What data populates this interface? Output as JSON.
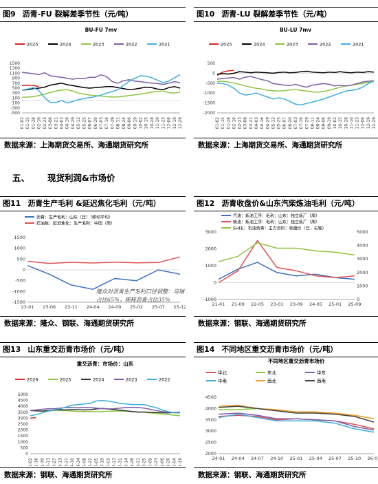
{
  "panels": [
    {
      "id": "fig9",
      "fig_label": "图9",
      "title": "沥青-FU 裂解差季节性（元/吨）",
      "source": "数据来源：上海期货交易所、海通期货研究所",
      "chart_data": {
        "type": "line",
        "title": "BU-FU 7mv",
        "x": [
          "01-02",
          "01-15",
          "01-28",
          "02-10",
          "02-23",
          "03-08",
          "03-21",
          "04-03",
          "04-16",
          "04-29",
          "05-12",
          "05-25",
          "06-07",
          "06-20",
          "07-03",
          "07-16",
          "07-29",
          "08-11",
          "08-24",
          "09-06",
          "09-19",
          "10-02",
          "10-15",
          "10-28",
          "11-10",
          "11-23",
          "12-06",
          "12-19",
          "12-29"
        ],
        "ylim": [
          -500,
          1500
        ],
        "yticks": [
          -500,
          -300,
          -100,
          100,
          300,
          500,
          700,
          900,
          1100,
          1300,
          1500
        ],
        "series": [
          {
            "name": "2025",
            "color": "#e02020",
            "values": [
              600,
              620,
              610,
              560,
              null,
              null,
              null,
              null,
              null,
              null,
              null,
              null,
              null,
              null,
              null,
              null,
              null,
              null,
              null,
              null,
              null,
              null,
              null,
              null,
              null,
              null,
              null,
              null,
              null
            ]
          },
          {
            "name": "2024",
            "color": "#000000",
            "values": [
              420,
              440,
              480,
              500,
              540,
              620,
              660,
              700,
              640,
              600,
              560,
              520,
              500,
              520,
              540,
              560,
              560,
              520,
              480,
              440,
              460,
              500,
              540,
              520,
              460,
              440,
              520,
              560,
              500
            ]
          },
          {
            "name": "2023",
            "color": "#8cc63f",
            "values": [
              130,
              140,
              160,
              200,
              260,
              320,
              380,
              420,
              440,
              380,
              300,
              260,
              220,
              200,
              180,
              160,
              140,
              150,
              170,
              200,
              230,
              260,
              300,
              340,
              360,
              380,
              320,
              300,
              330
            ]
          },
          {
            "name": "2022",
            "color": "#7b5ea7",
            "values": [
              1140,
              1110,
              1080,
              1050,
              1120,
              1000,
              960,
              940,
              900,
              860,
              900,
              880,
              940,
              940,
              1040,
              960,
              760,
              700,
              800,
              840,
              780,
              760,
              730,
              700,
              690,
              650,
              700,
              760,
              720
            ]
          },
          {
            "name": "2021",
            "color": "#3aaee0",
            "values": [
              420,
              460,
              520,
              400,
              120,
              -80,
              -80,
              0,
              -100,
              -40,
              40,
              80,
              120,
              160,
              220,
              300,
              360,
              440,
              620,
              780,
              900,
              1000,
              980,
              920,
              820,
              720,
              780,
              920,
              1040
            ]
          }
        ]
      }
    },
    {
      "id": "fig10",
      "fig_label": "图10",
      "title": "沥青-LU 裂解差季节性（元/吨）",
      "source": "数据来源：上海期货交易所、海通期货研究所",
      "chart_data": {
        "type": "line",
        "title": "BU-LU 7mv",
        "x": [
          "01-02",
          "01-15",
          "01-28",
          "02-10",
          "02-23",
          "03-08",
          "03-21",
          "04-03",
          "04-16",
          "04-29",
          "05-12",
          "05-25",
          "06-07",
          "06-20",
          "07-03",
          "07-16",
          "07-29",
          "08-11",
          "08-24",
          "09-06",
          "09-19",
          "10-02",
          "10-15",
          "10-28",
          "11-10",
          "11-23",
          "12-06",
          "12-19",
          "12-29"
        ],
        "ylim": [
          -2000,
          500
        ],
        "yticks": [
          -2000,
          -1500,
          -1000,
          -500,
          0,
          500
        ],
        "series": [
          {
            "name": "2025",
            "color": "#e02020",
            "values": [
              -100,
              60,
              120,
              150,
              null,
              null,
              null,
              null,
              null,
              null,
              null,
              null,
              null,
              null,
              null,
              null,
              null,
              null,
              null,
              null,
              null,
              null,
              null,
              null,
              null,
              null,
              null,
              null,
              null
            ]
          },
          {
            "name": "2024",
            "color": "#000000",
            "values": [
              -60,
              -20,
              -40,
              0,
              80,
              60,
              20,
              60,
              40,
              20,
              0,
              40,
              60,
              20,
              40,
              80,
              100,
              60,
              40,
              20,
              60,
              40,
              80,
              40,
              20,
              60,
              40,
              80,
              60
            ]
          },
          {
            "name": "2023",
            "color": "#8cc63f",
            "values": [
              -420,
              -400,
              -440,
              -500,
              -560,
              -640,
              -700,
              -760,
              -800,
              -860,
              -880,
              -900,
              -880,
              -840,
              -820,
              -860,
              -900,
              -940,
              -960,
              -920,
              -860,
              -780,
              -700,
              -640,
              -600,
              -560,
              -520,
              -460,
              -420
            ]
          },
          {
            "name": "2022",
            "color": "#7b5ea7",
            "values": [
              -300,
              -260,
              -240,
              -220,
              -300,
              -200,
              -160,
              -240,
              -320,
              -380,
              -520,
              -560,
              -600,
              -620,
              -560,
              -640,
              -700,
              -600,
              -560,
              -520,
              -560,
              -640,
              -600,
              -640,
              -600,
              -520,
              -440,
              -400,
              -380
            ]
          },
          {
            "name": "2021",
            "color": "#3aaee0",
            "values": [
              -500,
              -520,
              -600,
              -760,
              -1000,
              -1100,
              -1060,
              -1000,
              -1100,
              -1200,
              -1300,
              -1240,
              -1300,
              -1420,
              -1560,
              -1600,
              -1520,
              -1460,
              -1380,
              -1300,
              -1200,
              -1100,
              -1000,
              -900,
              -860,
              -820,
              -700,
              -520,
              -360
            ]
          }
        ]
      }
    },
    {
      "id": "fig11",
      "fig_label": "图11",
      "title": "沥青生产毛利 &延迟焦化毛利（元/吨）",
      "source": "数据来源：隆众、钢联、海通期货研究所",
      "annotation": "隆众对沥青生产毛利口径调整：马瑞占比65%，稀释沥青占比35%",
      "chart_data": {
        "type": "line",
        "x": [
          "23-01",
          "23-06",
          "23-11",
          "24-04",
          "24-09",
          "25-02",
          "25-07",
          "25-12"
        ],
        "ylim": [
          -1500,
          1500
        ],
        "yticks": [
          -1500,
          -1000,
          -500,
          0,
          500,
          1000,
          1500
        ],
        "series": [
          {
            "name": "沥青：生产毛利：山东（日）（移动平均）",
            "color": "#3a6fc4",
            "values": [
              200,
              -200,
              -700,
              -900,
              -400,
              -500,
              0,
              -200
            ]
          },
          {
            "name": "石油焦：延迟焦化：生产毛利：中国（周）",
            "color": "#e05050",
            "values": [
              400,
              300,
              350,
              320,
              360,
              330,
              340,
              600
            ]
          }
        ]
      }
    },
    {
      "id": "fig12",
      "fig_label": "图12",
      "title": "沥青收盘价&山东汽柴炼油毛利（元/吨）",
      "source": "数据来源：钢联、海通期货研究所",
      "chart_data": {
        "type": "line",
        "x": [
          "21-01",
          "21-09",
          "22-05",
          "23-01",
          "23-09",
          "24-05",
          "25-01",
          "25-09"
        ],
        "ylim": [
          -1000,
          3000
        ],
        "yticks": [
          -1000,
          0,
          1000,
          2000,
          3000
        ],
        "ylim_right": [
          0,
          5000
        ],
        "yticks_right": [
          0,
          1000,
          2000,
          3000,
          4000,
          5000
        ],
        "series": [
          {
            "name": "汽油：炼油工序：毛利：山东：独立炼厂（周）",
            "color": "#3a6fc4",
            "values": [
              200,
              800,
              1200,
              600,
              400,
              500,
              300,
              200
            ]
          },
          {
            "name": "柴油：炼油工序：毛利：山东：独立炼厂（周）",
            "color": "#e05050",
            "values": [
              0,
              700,
              2500,
              900,
              700,
              400,
              300,
              400
            ]
          },
          {
            "name": "SHFE：石油沥青：主力合约：收盘价（日，右轴）",
            "color": "#8cc63f",
            "values": [
              2800,
              3200,
              4200,
              3800,
              3800,
              3600,
              3500,
              3300
            ]
          }
        ]
      }
    },
    {
      "id": "fig13",
      "fig_label": "图13",
      "title": "山东重交沥青市场价（元/吨）",
      "source": "数据来源：钢联、海通期货研究所",
      "chart_data": {
        "type": "line",
        "title": "重交沥青：市场价：山东",
        "x": [
          "01-02",
          "01-16",
          "01-30",
          "02-13",
          "02-27",
          "03-13",
          "03-27",
          "04-10",
          "04-24",
          "05-08",
          "05-22",
          "06-05",
          "06-19",
          "07-03",
          "07-17",
          "07-31",
          "08-14",
          "08-28",
          "09-11",
          "09-25",
          "10-09",
          "10-23",
          "11-06",
          "11-20",
          "12-04",
          "12-19"
        ],
        "ylim": [
          0,
          5000
        ],
        "yticks": [
          0,
          500,
          1000,
          1500,
          2000,
          2500,
          3000,
          3500,
          4000,
          4500,
          5000
        ],
        "series": [
          {
            "name": "2026",
            "color": "#d32f2f",
            "values": [
              3000,
              3050,
              null,
              null,
              null,
              null,
              null,
              null,
              null,
              null,
              null,
              null,
              null,
              null,
              null,
              null,
              null,
              null,
              null,
              null,
              null,
              null,
              null,
              null,
              null,
              null
            ]
          },
          {
            "name": "2025",
            "color": "#8cc63f",
            "values": [
              3650,
              3620,
              3600,
              3620,
              3640,
              3650,
              3640,
              3600,
              3560,
              3560,
              3560,
              3540,
              3560,
              3580,
              3600,
              3600,
              3600,
              3560,
              3500,
              3500,
              3450,
              3400,
              3350,
              3300,
              3250,
              3200
            ]
          },
          {
            "name": "2024",
            "color": "#333333",
            "values": [
              3650,
              3620,
              3600,
              3650,
              3700,
              3720,
              3700,
              3720,
              3720,
              3700,
              3720,
              3780,
              3820,
              3780,
              3720,
              3680,
              3620,
              3560,
              3520,
              3520,
              3500,
              3480,
              3460,
              3450,
              3480,
              3500
            ]
          },
          {
            "name": "2023",
            "color": "#7b5ea7",
            "values": [
              3650,
              3700,
              3750,
              3800,
              3800,
              3850,
              3900,
              3900,
              3880,
              3900,
              3900,
              3850,
              3800,
              3780,
              3800,
              3850,
              3900,
              3920,
              3900,
              3850,
              3750,
              3650,
              3550,
              3500,
              3480,
              3450
            ]
          },
          {
            "name": "2022",
            "color": "#3aaee0",
            "values": [
              3200,
              3300,
              3450,
              3600,
              3700,
              3800,
              3950,
              4100,
              4150,
              4200,
              4250,
              4450,
              4500,
              4450,
              4350,
              4250,
              4200,
              4150,
              4150,
              4150,
              4000,
              3900,
              3700,
              3550,
              3450,
              3450
            ]
          }
        ]
      }
    },
    {
      "id": "fig14",
      "fig_label": "图14",
      "title": "不同地区重交沥青市场价（元/吨）",
      "source": "数据来源：钢联、海通期货研究所",
      "chart_data": {
        "type": "line",
        "title": "不同地区重交沥青市场价",
        "x": [
          "24-01",
          "24-04",
          "24-07",
          "24-10",
          "25-01",
          "25-04",
          "25-07",
          "25-10",
          "26-01"
        ],
        "ylim": [
          2000,
          4500
        ],
        "yticks": [
          2000,
          2500,
          3000,
          3500,
          4000,
          4500
        ],
        "series": [
          {
            "name": "华北",
            "color": "#e05050",
            "values": [
              3650,
              3700,
              3650,
              3500,
              3550,
              3500,
              3450,
              3300,
              3100
            ]
          },
          {
            "name": "东北",
            "color": "#8cc63f",
            "values": [
              3950,
              3950,
              4000,
              3900,
              3850,
              3800,
              3750,
              3700,
              3550
            ]
          },
          {
            "name": "华东",
            "color": "#7b5ea7",
            "values": [
              3750,
              3800,
              3700,
              3550,
              3550,
              3500,
              3450,
              3200,
              3050
            ]
          },
          {
            "name": "华南",
            "color": "#3aaee0",
            "values": [
              3600,
              3750,
              3600,
              3450,
              3450,
              3450,
              3350,
              3100,
              2950
            ]
          },
          {
            "name": "西北",
            "color": "#f39c33",
            "values": [
              4100,
              4150,
              4000,
              3950,
              3850,
              3850,
              3800,
              3700,
              3550
            ]
          },
          {
            "name": "西南",
            "color": "#444444",
            "values": [
              4050,
              4100,
              4000,
              3900,
              3800,
              3800,
              3750,
              3650,
              3400
            ]
          }
        ]
      }
    }
  ],
  "section": {
    "number": "五、",
    "title": "现货利润&市场价"
  }
}
